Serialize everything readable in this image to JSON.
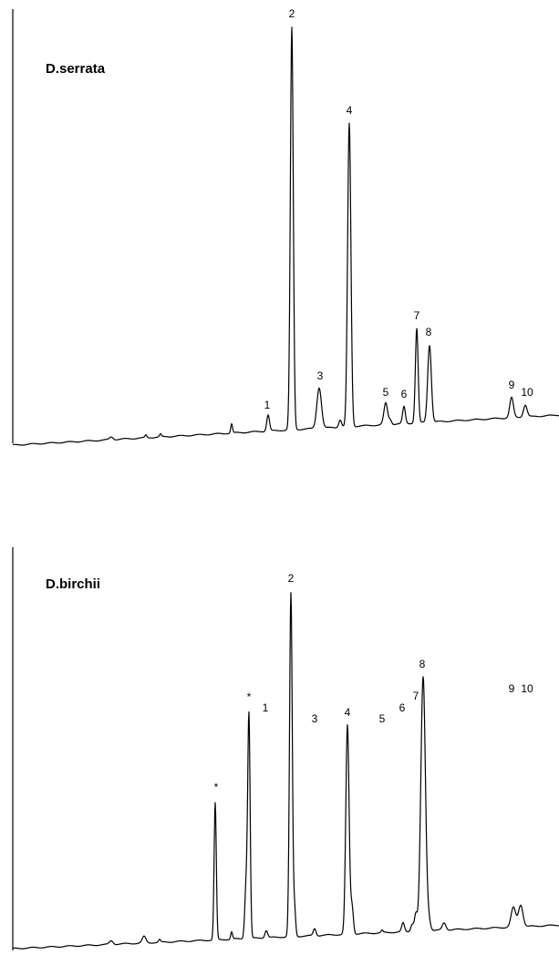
{
  "panels": [
    {
      "title": "D.serrata",
      "peaks": [
        "1",
        "2",
        "3",
        "4",
        "5",
        "6",
        "7",
        "8",
        "9",
        "10"
      ]
    },
    {
      "title": "D.birchii",
      "peaks": [
        "*",
        "*",
        "2",
        "1",
        "3",
        "4",
        "5",
        "6",
        "7",
        "8",
        "9",
        "10"
      ]
    }
  ]
}
